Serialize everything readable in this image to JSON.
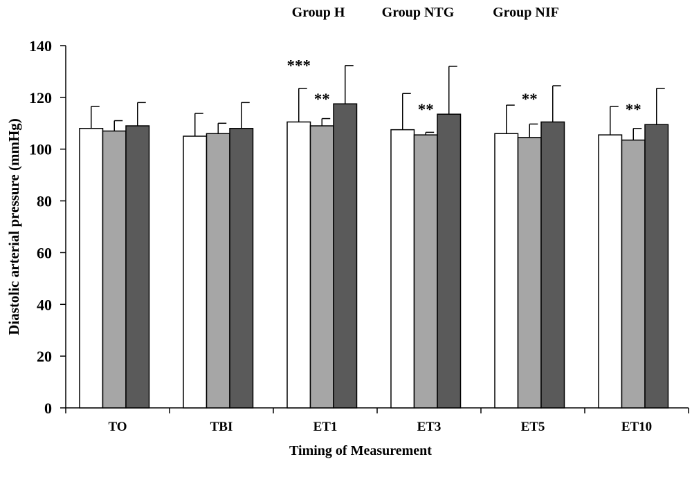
{
  "chart_data": {
    "type": "bar",
    "xlabel": "Timing of Measurement",
    "ylabel": "Diastolic arterial pressure (mmHg)",
    "ylim": [
      0,
      140
    ],
    "yticks": [
      0,
      20,
      40,
      60,
      80,
      100,
      120,
      140
    ],
    "categories": [
      "TO",
      "TBI",
      "ET1",
      "ET3",
      "ET5",
      "ET10"
    ],
    "legend_position": "top",
    "grid": false,
    "series": [
      {
        "name": "Group H",
        "color": "#ffffff",
        "values": [
          108,
          105,
          110.5,
          107.5,
          106,
          105.5
        ],
        "errors": [
          8.5,
          8.8,
          13,
          14,
          11,
          11
        ]
      },
      {
        "name": "Group NTG",
        "color": "#a6a6a6",
        "values": [
          107,
          106,
          109,
          105.5,
          104.5,
          103.5
        ],
        "errors": [
          4,
          4,
          2.8,
          1,
          5.2,
          4.5
        ]
      },
      {
        "name": "Group NIF",
        "color": "#5a5a5a",
        "values": [
          109,
          108,
          117.5,
          113.5,
          110.5,
          109.5
        ],
        "errors": [
          9,
          10,
          14.8,
          18.5,
          14,
          14
        ]
      }
    ],
    "annotations": [
      {
        "text": "***",
        "category": "ET1",
        "series": 0,
        "value": 134
      },
      {
        "text": "**",
        "category": "ET1",
        "series": 1,
        "value": 121
      },
      {
        "text": "**",
        "category": "ET3",
        "series": 1,
        "value": 117
      },
      {
        "text": "**",
        "category": "ET5",
        "series": 1,
        "value": 121
      },
      {
        "text": "**",
        "category": "ET10",
        "series": 1,
        "value": 117
      }
    ]
  }
}
